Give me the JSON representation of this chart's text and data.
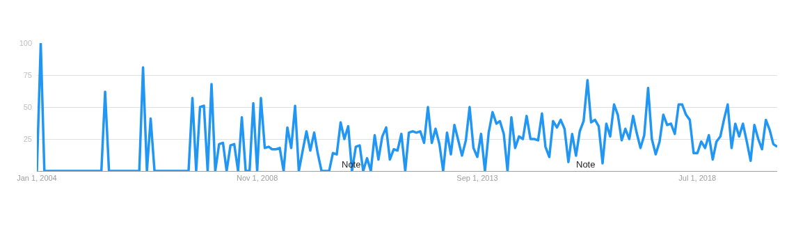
{
  "chart_data": {
    "type": "line",
    "x": [
      "2004-01",
      "2004-02",
      "2004-03",
      "2004-04",
      "2004-05",
      "2004-06",
      "2004-07",
      "2004-08",
      "2004-09",
      "2004-10",
      "2004-11",
      "2004-12",
      "2005-01",
      "2005-02",
      "2005-03",
      "2005-04",
      "2005-05",
      "2005-06",
      "2005-07",
      "2005-08",
      "2005-09",
      "2005-10",
      "2005-11",
      "2005-12",
      "2006-01",
      "2006-02",
      "2006-03",
      "2006-04",
      "2006-05",
      "2006-06",
      "2006-07",
      "2006-08",
      "2006-09",
      "2006-10",
      "2006-11",
      "2006-12",
      "2007-01",
      "2007-02",
      "2007-03",
      "2007-04",
      "2007-05",
      "2007-06",
      "2007-07",
      "2007-08",
      "2007-09",
      "2007-10",
      "2007-11",
      "2007-12",
      "2008-01",
      "2008-02",
      "2008-03",
      "2008-04",
      "2008-05",
      "2008-06",
      "2008-07",
      "2008-08",
      "2008-09",
      "2008-10",
      "2008-11",
      "2008-12",
      "2009-01",
      "2009-02",
      "2009-03",
      "2009-04",
      "2009-05",
      "2009-06",
      "2009-07",
      "2009-08",
      "2009-09",
      "2009-10",
      "2009-11",
      "2009-12",
      "2010-01",
      "2010-02",
      "2010-03",
      "2010-04",
      "2010-05",
      "2010-06",
      "2010-07",
      "2010-08",
      "2010-09",
      "2010-10",
      "2010-11",
      "2010-12",
      "2011-01",
      "2011-02",
      "2011-03",
      "2011-04",
      "2011-05",
      "2011-06",
      "2011-07",
      "2011-08",
      "2011-09",
      "2011-10",
      "2011-11",
      "2011-12",
      "2012-01",
      "2012-02",
      "2012-03",
      "2012-04",
      "2012-05",
      "2012-06",
      "2012-07",
      "2012-08",
      "2012-09",
      "2012-10",
      "2012-11",
      "2012-12",
      "2013-01",
      "2013-02",
      "2013-03",
      "2013-04",
      "2013-05",
      "2013-06",
      "2013-07",
      "2013-08",
      "2013-09",
      "2013-10",
      "2013-11",
      "2013-12",
      "2014-01",
      "2014-02",
      "2014-03",
      "2014-04",
      "2014-05",
      "2014-06",
      "2014-07",
      "2014-08",
      "2014-09",
      "2014-10",
      "2014-11",
      "2014-12",
      "2015-01",
      "2015-02",
      "2015-03",
      "2015-04",
      "2015-05",
      "2015-06",
      "2015-07",
      "2015-08",
      "2015-09",
      "2015-10",
      "2015-11",
      "2015-12",
      "2016-01",
      "2016-02",
      "2016-03",
      "2016-04",
      "2016-05",
      "2016-06",
      "2016-07",
      "2016-08",
      "2016-09",
      "2016-10",
      "2016-11",
      "2016-12",
      "2017-01",
      "2017-02",
      "2017-03",
      "2017-04",
      "2017-05",
      "2017-06",
      "2017-07",
      "2017-08",
      "2017-09",
      "2017-10",
      "2017-11",
      "2017-12",
      "2018-01",
      "2018-02",
      "2018-03",
      "2018-04",
      "2018-05",
      "2018-06",
      "2018-07",
      "2018-08",
      "2018-09",
      "2018-10",
      "2018-11",
      "2018-12",
      "2019-01",
      "2019-02",
      "2019-03",
      "2019-04",
      "2019-05",
      "2019-06",
      "2019-07",
      "2019-08",
      "2019-09",
      "2019-10",
      "2019-11",
      "2019-12",
      "2020-01",
      "2020-02",
      "2020-03",
      "2020-04"
    ],
    "series": [
      {
        "color": "#2196f3",
        "values": [
          0,
          100,
          0,
          0,
          0,
          0,
          0,
          0,
          0,
          0,
          0,
          0,
          0,
          0,
          0,
          0,
          0,
          0,
          62,
          0,
          0,
          0,
          0,
          0,
          0,
          0,
          0,
          0,
          81,
          0,
          41,
          0,
          0,
          0,
          0,
          0,
          0,
          0,
          0,
          0,
          0,
          57,
          0,
          50,
          51,
          0,
          68,
          0,
          21,
          22,
          0,
          20,
          21,
          0,
          42,
          0,
          0,
          53,
          0,
          57,
          18,
          19,
          17,
          17,
          18,
          0,
          34,
          18,
          51,
          0,
          16,
          31,
          16,
          30,
          14,
          0,
          0,
          0,
          14,
          13,
          38,
          25,
          35,
          0,
          19,
          20,
          0,
          10,
          0,
          28,
          9,
          27,
          34,
          9,
          17,
          16,
          29,
          0,
          30,
          31,
          30,
          31,
          22,
          50,
          22,
          33,
          21,
          0,
          30,
          13,
          36,
          24,
          12,
          24,
          50,
          18,
          11,
          29,
          0,
          30,
          46,
          37,
          39,
          29,
          0,
          42,
          18,
          27,
          25,
          43,
          25,
          25,
          24,
          45,
          19,
          11,
          39,
          34,
          40,
          33,
          7,
          29,
          12,
          31,
          39,
          71,
          38,
          40,
          35,
          6,
          37,
          27,
          52,
          44,
          24,
          33,
          25,
          43,
          30,
          18,
          28,
          65,
          25,
          13,
          23,
          44,
          36,
          37,
          29,
          52,
          52,
          44,
          40,
          14,
          14,
          23,
          18,
          28,
          9,
          23,
          27,
          41,
          52,
          18,
          37,
          27,
          37,
          23,
          8,
          36,
          25,
          17,
          40,
          32,
          21,
          19
        ]
      }
    ],
    "xlim": [
      "2004-01-01",
      "2020-04-01"
    ],
    "xticks": [
      {
        "value": "2004-01-01",
        "label": "Jan 1, 2004"
      },
      {
        "value": "2008-11-01",
        "label": "Nov 1, 2008"
      },
      {
        "value": "2013-09-01",
        "label": "Sep 1, 2013"
      },
      {
        "value": "2018-07-01",
        "label": "Jul 1, 2018"
      }
    ],
    "ylim": [
      0,
      100
    ],
    "yticks": [
      {
        "value": 0,
        "label": null
      },
      25,
      50,
      75,
      100
    ],
    "grid": "y",
    "marker": "none",
    "line_style": "solid",
    "annotations": [
      "Note",
      "Note"
    ]
  }
}
